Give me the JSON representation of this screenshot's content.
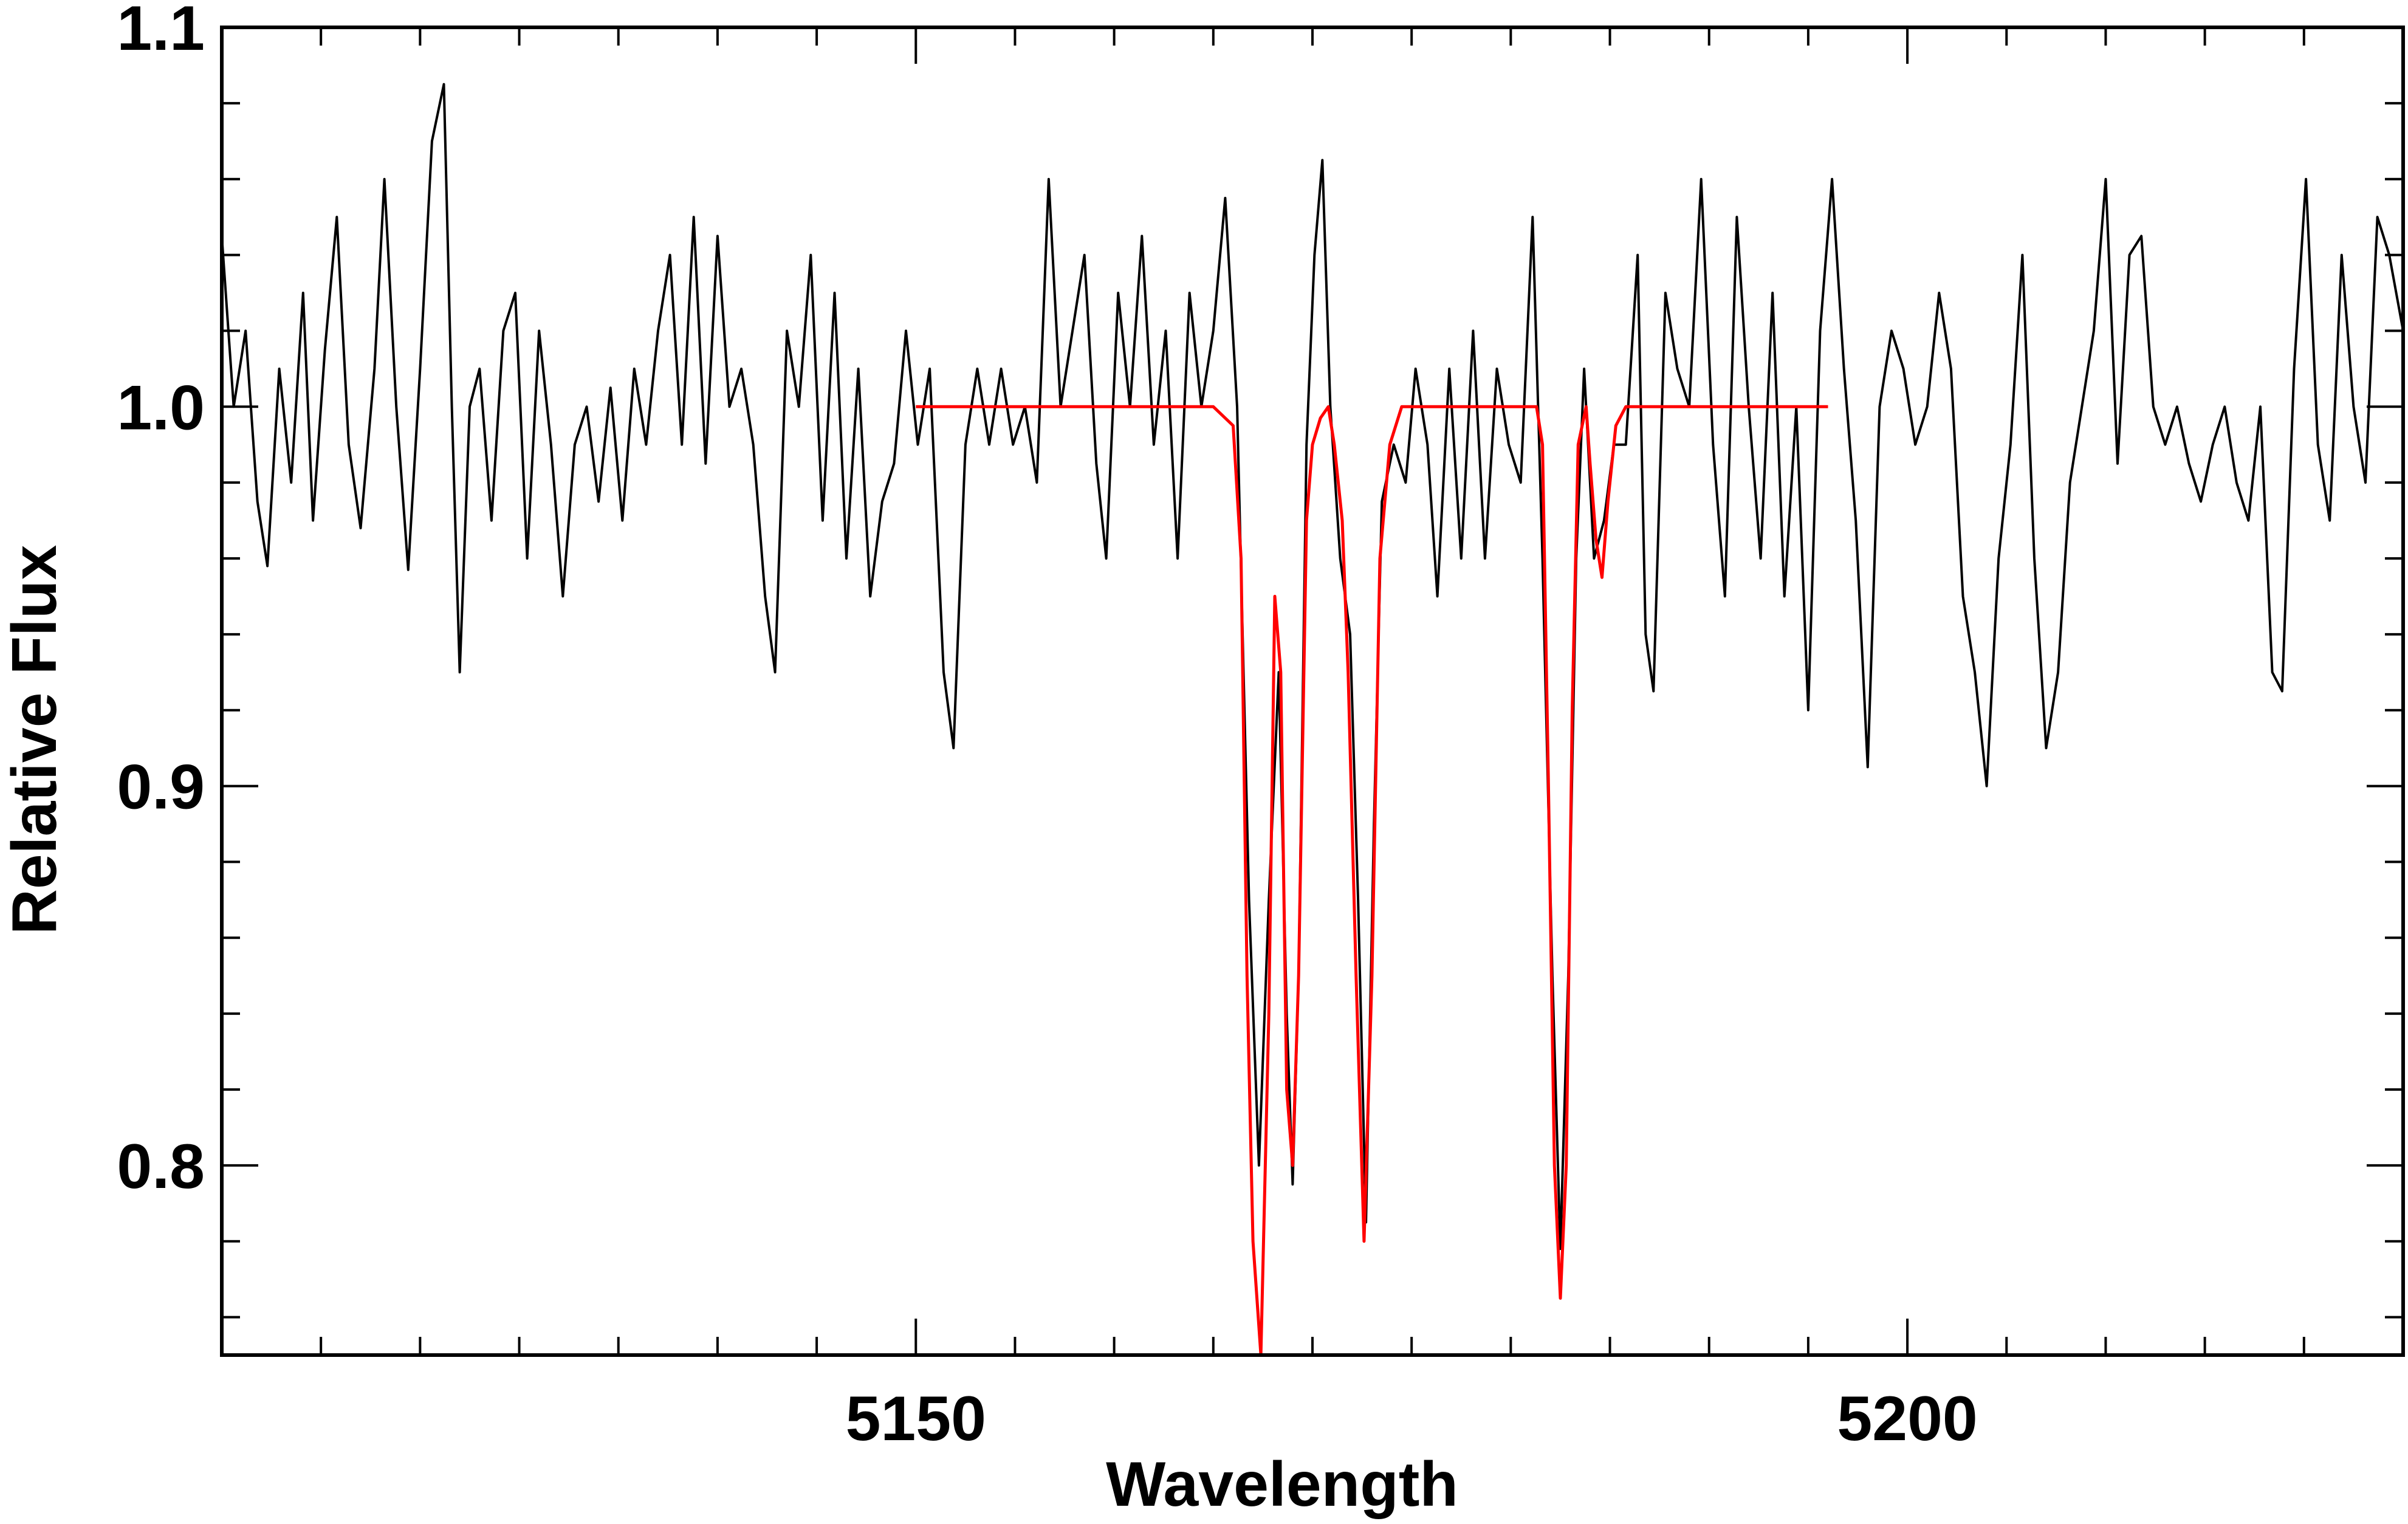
{
  "chart_data": {
    "type": "line",
    "title": "",
    "xlabel": "Wavelength",
    "ylabel": "Relative Flux",
    "xlim": [
      5115,
      5225
    ],
    "ylim": [
      0.75,
      1.1
    ],
    "x_major_ticks": [
      5150,
      5200
    ],
    "x_tick_labels": [
      "5150",
      "5200"
    ],
    "x_minor_ticks": [
      5120,
      5125,
      5130,
      5135,
      5140,
      5145,
      5155,
      5160,
      5165,
      5170,
      5175,
      5180,
      5185,
      5190,
      5195,
      5205,
      5210,
      5215,
      5220
    ],
    "y_major_ticks": [
      0.8,
      0.9,
      1.0,
      1.1
    ],
    "y_tick_labels": [
      "0.8",
      "0.9",
      "1.0",
      "1.1"
    ],
    "y_minor_ticks": [
      0.76,
      0.78,
      0.82,
      0.84,
      0.86,
      0.88,
      0.92,
      0.94,
      0.96,
      0.98,
      1.02,
      1.04,
      1.06,
      1.08
    ],
    "grid": false,
    "legend": "none",
    "series": [
      {
        "color": "#000000",
        "points": [
          [
            5115.0,
            1.045
          ],
          [
            5115.6,
            1.0
          ],
          [
            5116.2,
            1.02
          ],
          [
            5116.8,
            0.975
          ],
          [
            5117.3,
            0.958
          ],
          [
            5117.9,
            1.01
          ],
          [
            5118.5,
            0.98
          ],
          [
            5119.1,
            1.03
          ],
          [
            5119.6,
            0.97
          ],
          [
            5120.2,
            1.015
          ],
          [
            5120.8,
            1.05
          ],
          [
            5121.4,
            0.99
          ],
          [
            5122.0,
            0.968
          ],
          [
            5122.7,
            1.01
          ],
          [
            5123.2,
            1.06
          ],
          [
            5123.8,
            1.0
          ],
          [
            5124.4,
            0.957
          ],
          [
            5125.0,
            1.01
          ],
          [
            5125.6,
            1.07
          ],
          [
            5126.2,
            1.085
          ],
          [
            5126.6,
            1.0
          ],
          [
            5127.0,
            0.93
          ],
          [
            5127.5,
            1.0
          ],
          [
            5128.0,
            1.01
          ],
          [
            5128.6,
            0.97
          ],
          [
            5129.2,
            1.02
          ],
          [
            5129.8,
            1.03
          ],
          [
            5130.4,
            0.96
          ],
          [
            5131.0,
            1.02
          ],
          [
            5131.6,
            0.99
          ],
          [
            5132.2,
            0.95
          ],
          [
            5132.8,
            0.99
          ],
          [
            5133.4,
            1.0
          ],
          [
            5134.0,
            0.975
          ],
          [
            5134.6,
            1.005
          ],
          [
            5135.2,
            0.97
          ],
          [
            5135.8,
            1.01
          ],
          [
            5136.4,
            0.99
          ],
          [
            5137.0,
            1.02
          ],
          [
            5137.6,
            1.04
          ],
          [
            5138.2,
            0.99
          ],
          [
            5138.8,
            1.05
          ],
          [
            5139.4,
            0.985
          ],
          [
            5140.0,
            1.045
          ],
          [
            5140.6,
            1.0
          ],
          [
            5141.2,
            1.01
          ],
          [
            5141.8,
            0.99
          ],
          [
            5142.4,
            0.95
          ],
          [
            5142.9,
            0.93
          ],
          [
            5143.5,
            1.02
          ],
          [
            5144.1,
            1.0
          ],
          [
            5144.7,
            1.04
          ],
          [
            5145.3,
            0.97
          ],
          [
            5145.9,
            1.03
          ],
          [
            5146.5,
            0.96
          ],
          [
            5147.1,
            1.01
          ],
          [
            5147.7,
            0.95
          ],
          [
            5148.3,
            0.975
          ],
          [
            5148.9,
            0.985
          ],
          [
            5149.5,
            1.02
          ],
          [
            5150.1,
            0.99
          ],
          [
            5150.7,
            1.01
          ],
          [
            5151.4,
            0.93
          ],
          [
            5151.9,
            0.91
          ],
          [
            5152.5,
            0.99
          ],
          [
            5153.1,
            1.01
          ],
          [
            5153.7,
            0.99
          ],
          [
            5154.3,
            1.01
          ],
          [
            5154.9,
            0.99
          ],
          [
            5155.5,
            1.0
          ],
          [
            5156.1,
            0.98
          ],
          [
            5156.7,
            1.06
          ],
          [
            5157.3,
            1.0
          ],
          [
            5157.9,
            1.02
          ],
          [
            5158.5,
            1.04
          ],
          [
            5159.1,
            0.985
          ],
          [
            5159.6,
            0.96
          ],
          [
            5160.2,
            1.03
          ],
          [
            5160.8,
            1.0
          ],
          [
            5161.4,
            1.045
          ],
          [
            5162.0,
            0.99
          ],
          [
            5162.6,
            1.02
          ],
          [
            5163.2,
            0.96
          ],
          [
            5163.8,
            1.03
          ],
          [
            5164.4,
            1.0
          ],
          [
            5165.0,
            1.02
          ],
          [
            5165.6,
            1.055
          ],
          [
            5166.2,
            1.0
          ],
          [
            5166.8,
            0.87
          ],
          [
            5167.3,
            0.8
          ],
          [
            5167.8,
            0.87
          ],
          [
            5168.3,
            0.93
          ],
          [
            5168.7,
            0.84
          ],
          [
            5169.0,
            0.795
          ],
          [
            5169.3,
            0.85
          ],
          [
            5169.7,
            0.99
          ],
          [
            5170.1,
            1.04
          ],
          [
            5170.5,
            1.065
          ],
          [
            5170.9,
            1.0
          ],
          [
            5171.4,
            0.96
          ],
          [
            5171.9,
            0.94
          ],
          [
            5172.3,
            0.87
          ],
          [
            5172.7,
            0.785
          ],
          [
            5173.1,
            0.89
          ],
          [
            5173.5,
            0.975
          ],
          [
            5174.1,
            0.99
          ],
          [
            5174.7,
            0.98
          ],
          [
            5175.2,
            1.01
          ],
          [
            5175.8,
            0.99
          ],
          [
            5176.3,
            0.95
          ],
          [
            5176.9,
            1.01
          ],
          [
            5177.5,
            0.96
          ],
          [
            5178.1,
            1.02
          ],
          [
            5178.7,
            0.96
          ],
          [
            5179.3,
            1.01
          ],
          [
            5179.9,
            0.99
          ],
          [
            5180.5,
            0.98
          ],
          [
            5181.1,
            1.05
          ],
          [
            5181.6,
            0.96
          ],
          [
            5182.1,
            0.85
          ],
          [
            5182.5,
            0.778
          ],
          [
            5182.9,
            0.85
          ],
          [
            5183.3,
            0.96
          ],
          [
            5183.7,
            1.01
          ],
          [
            5184.2,
            0.96
          ],
          [
            5184.7,
            0.97
          ],
          [
            5185.2,
            0.99
          ],
          [
            5185.8,
            0.99
          ],
          [
            5186.4,
            1.04
          ],
          [
            5186.8,
            0.94
          ],
          [
            5187.2,
            0.925
          ],
          [
            5187.8,
            1.03
          ],
          [
            5188.4,
            1.01
          ],
          [
            5189.0,
            1.0
          ],
          [
            5189.6,
            1.06
          ],
          [
            5190.2,
            0.99
          ],
          [
            5190.8,
            0.95
          ],
          [
            5191.4,
            1.05
          ],
          [
            5192.0,
            1.0
          ],
          [
            5192.6,
            0.96
          ],
          [
            5193.2,
            1.03
          ],
          [
            5193.8,
            0.95
          ],
          [
            5194.4,
            1.0
          ],
          [
            5195.0,
            0.92
          ],
          [
            5195.6,
            1.02
          ],
          [
            5196.2,
            1.06
          ],
          [
            5196.8,
            1.01
          ],
          [
            5197.4,
            0.97
          ],
          [
            5198.0,
            0.905
          ],
          [
            5198.6,
            1.0
          ],
          [
            5199.2,
            1.02
          ],
          [
            5199.8,
            1.01
          ],
          [
            5200.4,
            0.99
          ],
          [
            5201.0,
            1.0
          ],
          [
            5201.6,
            1.03
          ],
          [
            5202.2,
            1.01
          ],
          [
            5202.8,
            0.95
          ],
          [
            5203.4,
            0.93
          ],
          [
            5204.0,
            0.9
          ],
          [
            5204.6,
            0.96
          ],
          [
            5205.2,
            0.99
          ],
          [
            5205.8,
            1.04
          ],
          [
            5206.4,
            0.96
          ],
          [
            5207.0,
            0.91
          ],
          [
            5207.6,
            0.93
          ],
          [
            5208.2,
            0.98
          ],
          [
            5208.8,
            1.0
          ],
          [
            5209.4,
            1.02
          ],
          [
            5210.0,
            1.06
          ],
          [
            5210.6,
            0.985
          ],
          [
            5211.2,
            1.04
          ],
          [
            5211.8,
            1.045
          ],
          [
            5212.4,
            1.0
          ],
          [
            5213.0,
            0.99
          ],
          [
            5213.6,
            1.0
          ],
          [
            5214.2,
            0.985
          ],
          [
            5214.8,
            0.975
          ],
          [
            5215.4,
            0.99
          ],
          [
            5216.0,
            1.0
          ],
          [
            5216.6,
            0.98
          ],
          [
            5217.2,
            0.97
          ],
          [
            5217.8,
            1.0
          ],
          [
            5218.4,
            0.93
          ],
          [
            5218.9,
            0.925
          ],
          [
            5219.5,
            1.01
          ],
          [
            5220.1,
            1.06
          ],
          [
            5220.7,
            0.99
          ],
          [
            5221.3,
            0.97
          ],
          [
            5221.9,
            1.04
          ],
          [
            5222.5,
            1.0
          ],
          [
            5223.1,
            0.98
          ],
          [
            5223.7,
            1.05
          ],
          [
            5224.3,
            1.04
          ],
          [
            5225.0,
            1.02
          ]
        ]
      },
      {
        "color": "#ff0000",
        "points": [
          [
            5150.0,
            1.0
          ],
          [
            5165.0,
            1.0
          ],
          [
            5166.0,
            0.995
          ],
          [
            5166.4,
            0.96
          ],
          [
            5166.7,
            0.85
          ],
          [
            5167.0,
            0.78
          ],
          [
            5167.4,
            0.75
          ],
          [
            5167.8,
            0.84
          ],
          [
            5168.1,
            0.95
          ],
          [
            5168.4,
            0.93
          ],
          [
            5168.7,
            0.82
          ],
          [
            5169.0,
            0.8
          ],
          [
            5169.3,
            0.85
          ],
          [
            5169.7,
            0.97
          ],
          [
            5170.0,
            0.99
          ],
          [
            5170.4,
            0.997
          ],
          [
            5170.8,
            1.0
          ],
          [
            5171.1,
            0.99
          ],
          [
            5171.5,
            0.97
          ],
          [
            5171.8,
            0.93
          ],
          [
            5172.2,
            0.85
          ],
          [
            5172.6,
            0.78
          ],
          [
            5173.0,
            0.85
          ],
          [
            5173.4,
            0.96
          ],
          [
            5173.9,
            0.99
          ],
          [
            5174.5,
            1.0
          ],
          [
            5181.3,
            1.0
          ],
          [
            5181.6,
            0.99
          ],
          [
            5181.9,
            0.9
          ],
          [
            5182.2,
            0.8
          ],
          [
            5182.5,
            0.765
          ],
          [
            5182.8,
            0.8
          ],
          [
            5183.1,
            0.92
          ],
          [
            5183.4,
            0.99
          ],
          [
            5183.8,
            1.0
          ],
          [
            5184.0,
            0.985
          ],
          [
            5184.3,
            0.965
          ],
          [
            5184.6,
            0.955
          ],
          [
            5184.9,
            0.975
          ],
          [
            5185.3,
            0.995
          ],
          [
            5185.8,
            1.0
          ],
          [
            5196.0,
            1.0
          ]
        ]
      }
    ]
  }
}
